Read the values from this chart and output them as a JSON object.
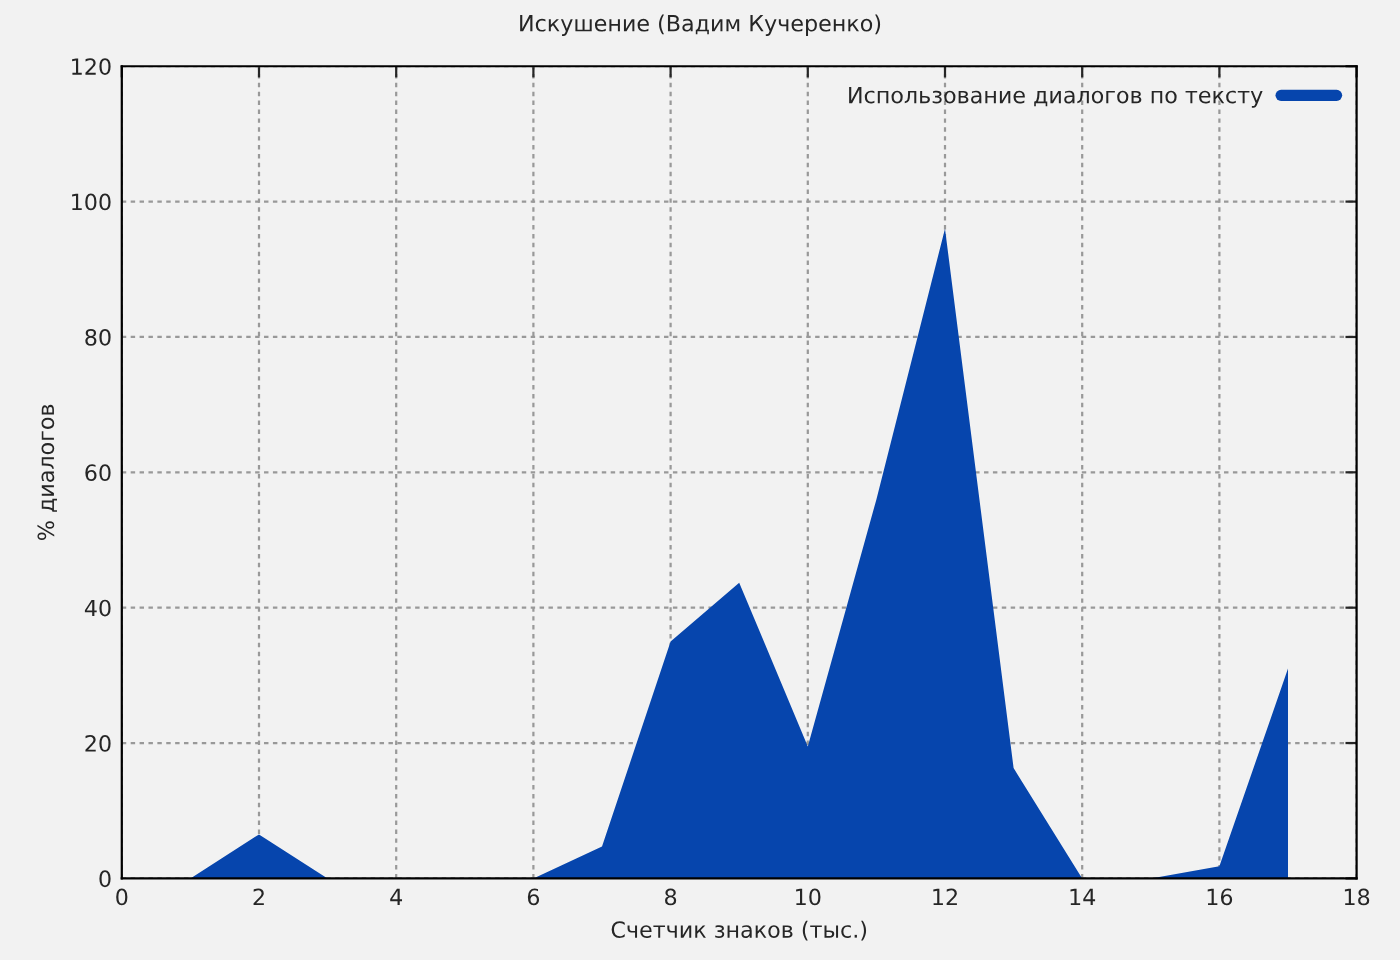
{
  "chart_data": {
    "type": "area",
    "title": "Искушение (Вадим Кучеренко)",
    "xlabel": "Счетчик знаков (тыс.)",
    "ylabel": "% диалогов",
    "x": [
      1,
      2,
      3,
      4,
      5,
      6,
      7,
      8,
      9,
      10,
      11,
      12,
      13,
      14,
      15,
      16,
      17
    ],
    "series": [
      {
        "name": "Использование диалогов по тексту",
        "color": "#0645ad",
        "values": [
          0,
          6.5,
          0,
          0,
          0,
          0,
          4.7,
          35,
          43.7,
          19.5,
          56,
          96,
          16.3,
          0,
          0,
          1.8,
          31
        ]
      }
    ],
    "xlim": [
      0,
      18
    ],
    "xticks": [
      0,
      2,
      4,
      6,
      8,
      10,
      12,
      14,
      16,
      18
    ],
    "ylim": [
      0,
      120
    ],
    "yticks": [
      0,
      20,
      40,
      60,
      80,
      100,
      120
    ],
    "grid": true,
    "legend": "top right"
  }
}
